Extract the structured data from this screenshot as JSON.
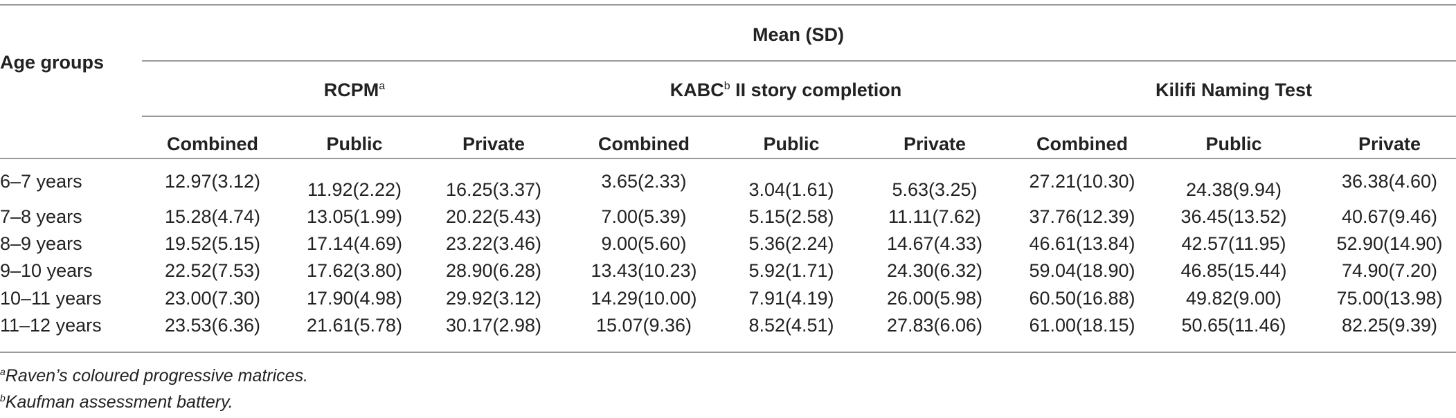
{
  "table": {
    "row_header_label": "Age groups",
    "group_header": "Mean (SD)",
    "measures": [
      {
        "name": "RCPM",
        "sup": "a"
      },
      {
        "name": "KABC",
        "sup": "b",
        "suffix": " II story completion"
      },
      {
        "name": "Kilifi Naming Test"
      }
    ],
    "sub_columns": [
      "Combined",
      "Public",
      "Private",
      "Combined",
      "Public",
      "Private",
      "Combined",
      "Public",
      "Private"
    ],
    "rows": [
      {
        "age": "6–7 years",
        "values": [
          "12.97(3.12)",
          "11.92(2.22)",
          "16.25(3.37)",
          "3.65(2.33)",
          "3.04(1.61)",
          "5.63(3.25)",
          "27.21(10.30)",
          "24.38(9.94)",
          "36.38(4.60)"
        ]
      },
      {
        "age": "7–8 years",
        "values": [
          "15.28(4.74)",
          "13.05(1.99)",
          "20.22(5.43)",
          "7.00(5.39)",
          "5.15(2.58)",
          "11.11(7.62)",
          "37.76(12.39)",
          "36.45(13.52)",
          "40.67(9.46)"
        ]
      },
      {
        "age": "8–9 years",
        "values": [
          "19.52(5.15)",
          "17.14(4.69)",
          "23.22(3.46)",
          "9.00(5.60)",
          "5.36(2.24)",
          "14.67(4.33)",
          "46.61(13.84)",
          "42.57(11.95)",
          "52.90(14.90)"
        ]
      },
      {
        "age": "9–10 years",
        "values": [
          "22.52(7.53)",
          "17.62(3.80)",
          "28.90(6.28)",
          "13.43(10.23)",
          "5.92(1.71)",
          "24.30(6.32)",
          "59.04(18.90)",
          "46.85(15.44)",
          "74.90(7.20)"
        ]
      },
      {
        "age": "10–11 years",
        "values": [
          "23.00(7.30)",
          "17.90(4.98)",
          "29.92(3.12)",
          "14.29(10.00)",
          "7.91(4.19)",
          "26.00(5.98)",
          "60.50(16.88)",
          "49.82(9.00)",
          "75.00(13.98)"
        ]
      },
      {
        "age": "11–12 years",
        "values": [
          "23.53(6.36)",
          "21.61(5.78)",
          "30.17(2.98)",
          "15.07(9.36)",
          "8.52(4.51)",
          "27.83(6.06)",
          "61.00(18.15)",
          "50.65(11.46)",
          "82.25(9.39)"
        ]
      }
    ]
  },
  "footnotes": [
    {
      "mark": "a",
      "text": "Raven’s coloured progressive matrices."
    },
    {
      "mark": "b",
      "text": "Kaufman assessment battery."
    }
  ]
}
